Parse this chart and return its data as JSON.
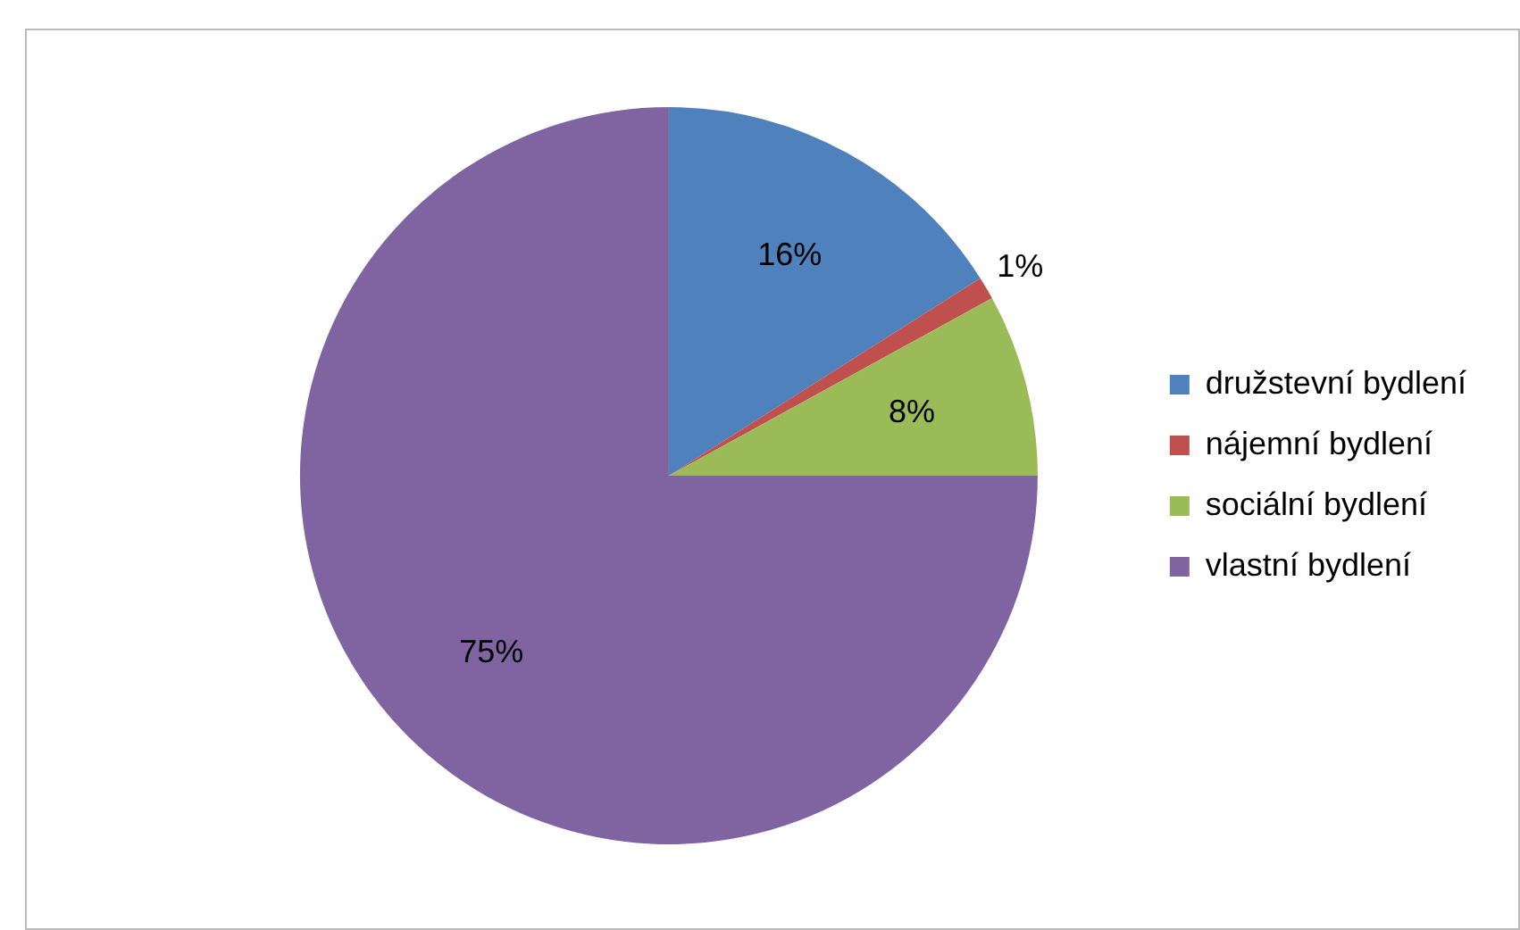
{
  "chart_data": {
    "type": "pie",
    "categories": [
      "družstevní bydlení",
      "nájemní bydlení",
      "sociální bydlení",
      "vlastní bydlení"
    ],
    "values": [
      16,
      1,
      8,
      75
    ],
    "colors": [
      "#4f81bd",
      "#c0504d",
      "#9bbb59",
      "#8064a2"
    ],
    "value_labels": [
      "16%",
      "1%",
      "8%",
      "75%"
    ],
    "legend": "right"
  }
}
